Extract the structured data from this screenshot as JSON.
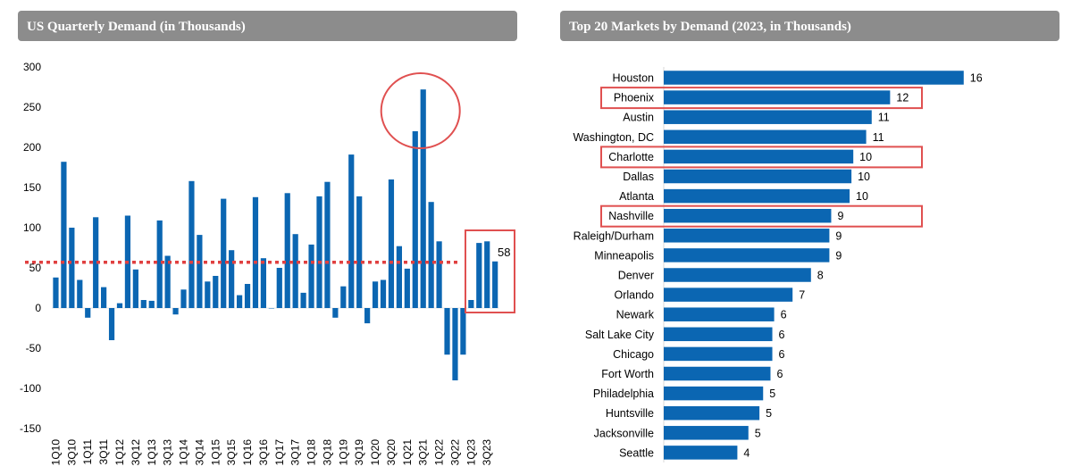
{
  "left_title": "US Quarterly Demand (in Thousands)",
  "right_title": "Top 20 Markets by Demand (2023, in Thousands)",
  "chart_data": [
    {
      "type": "bar",
      "title": "US Quarterly Demand (in Thousands)",
      "ylim": [
        -150,
        300
      ],
      "yticks": [
        300,
        250,
        200,
        150,
        100,
        50,
        0,
        -50,
        -100,
        -150
      ],
      "x_tick_labels": [
        "1Q10",
        "3Q10",
        "1Q11",
        "3Q11",
        "1Q12",
        "3Q12",
        "1Q13",
        "3Q13",
        "1Q14",
        "3Q14",
        "1Q15",
        "3Q15",
        "1Q16",
        "3Q16",
        "1Q17",
        "3Q17",
        "1Q18",
        "3Q18",
        "1Q19",
        "3Q19",
        "1Q20",
        "3Q20",
        "1Q21",
        "3Q21",
        "1Q22",
        "3Q22",
        "1Q23",
        "3Q23"
      ],
      "values": [
        38,
        182,
        100,
        35,
        -12,
        113,
        26,
        -40,
        6,
        115,
        48,
        10,
        9,
        109,
        65,
        -8,
        23,
        158,
        91,
        33,
        40,
        136,
        72,
        16,
        30,
        138,
        62,
        0,
        50,
        143,
        92,
        19,
        79,
        139,
        157,
        -12,
        27,
        191,
        139,
        -19,
        33,
        35,
        160,
        77,
        49,
        220,
        272,
        132,
        83,
        -58,
        -90,
        -58,
        10,
        81,
        83,
        58
      ],
      "reference_line": 57,
      "annotations": {
        "last_value_label": "58"
      },
      "colors": {
        "bar": "#0b66b2",
        "reference": "#e04040",
        "highlight": "#e05050"
      }
    },
    {
      "type": "bar",
      "orientation": "horizontal",
      "title": "Top 20 Markets by Demand (2023, in Thousands)",
      "categories": [
        "Houston",
        "Phoenix",
        "Austin",
        "Washington, DC",
        "Charlotte",
        "Dallas",
        "Atlanta",
        "Nashville",
        "Raleigh/Durham",
        "Minneapolis",
        "Denver",
        "Orlando",
        "Newark",
        "Salt Lake City",
        "Chicago",
        "Fort Worth",
        "Philadelphia",
        "Huntsville",
        "Jacksonville",
        "Seattle"
      ],
      "values": [
        16.3,
        12.3,
        11.3,
        11.0,
        10.3,
        10.2,
        10.1,
        9.1,
        9.0,
        9.0,
        8.0,
        7.0,
        6.0,
        5.9,
        5.9,
        5.8,
        5.4,
        5.2,
        4.6,
        4.0
      ],
      "value_labels": [
        "16",
        "12",
        "11",
        "11",
        "10",
        "10",
        "10",
        "9",
        "9",
        "9",
        "8",
        "7",
        "6",
        "6",
        "6",
        "6",
        "5",
        "5",
        "5",
        "4"
      ],
      "highlighted": [
        "Phoenix",
        "Charlotte",
        "Nashville"
      ],
      "colors": {
        "bar": "#0b66b2",
        "highlight": "#e05050"
      }
    }
  ]
}
